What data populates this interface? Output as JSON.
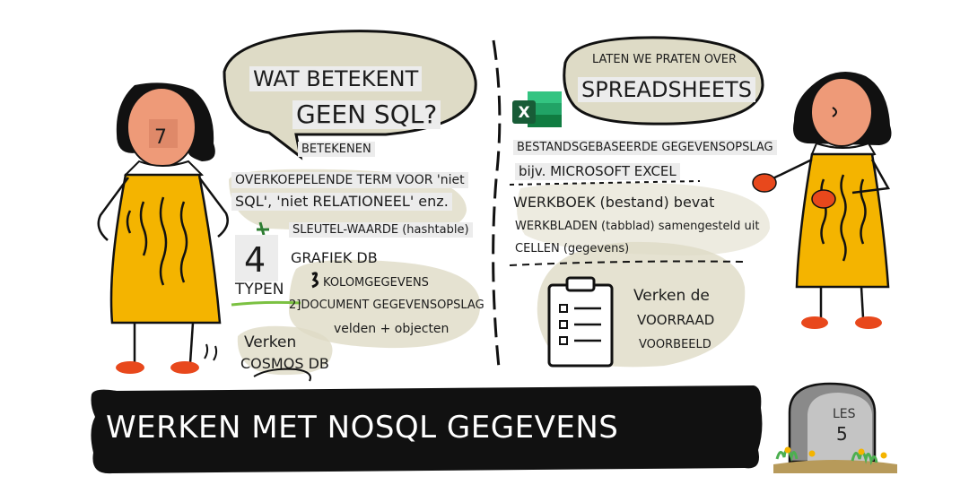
{
  "left_bubble": {
    "line1": "WAT BETEKENT",
    "line2": "GEEN SQL?"
  },
  "badge_number": "7",
  "means_label": "BETEKENEN",
  "definition": {
    "line1": "OVERKOEPELENDE TERM VOOR 'niet",
    "line2": "SQL', 'niet RELATIONEEL' enz."
  },
  "types": {
    "count": "4",
    "label": "TYPEN",
    "items": [
      {
        "marker": "1",
        "text": "SLEUTEL-WAARDE (hashtable)"
      },
      {
        "marker": "",
        "text": "GRAFIEK DB"
      },
      {
        "marker": "3",
        "text": "KOLOMGEGEVENS"
      },
      {
        "marker": "",
        "text": "2]DOCUMENT GEGEVENSOPSLAG"
      }
    ],
    "fields_note": "velden + objecten"
  },
  "work_cosmos": {
    "line1": "Verken",
    "line2": "COSMOS DB"
  },
  "right_bubble": {
    "line1": "LATEN WE PRATEN OVER",
    "line2": "SPREADSHEETS"
  },
  "spreadsheet": {
    "storage": "BESTANDSGEBASEERDE GEGEVENSOPSLAG",
    "example": "bijv. MICROSOFT EXCEL",
    "workbook": "WERKBOEK (bestand) bevat",
    "sheets": "WERKBLADEN (tabblad) samengesteld uit",
    "cells": "CELLEN (gegevens)"
  },
  "inventory": {
    "line1": "Verken de",
    "line2": "VOORRAAD",
    "line3": "VOORBEELD"
  },
  "banner_title": "WERKEN MET NOSQL GEGEVENS",
  "lesson": {
    "label": "LES",
    "number": "5"
  },
  "icons": [
    "excel-logo-icon",
    "clipboard-checklist-icon",
    "gravestone-icon"
  ],
  "colors": {
    "dress": "#f4b400",
    "face": "#ee9a78",
    "accent": "#e8481c",
    "blob": "#dedbc6",
    "banner": "#111111"
  }
}
